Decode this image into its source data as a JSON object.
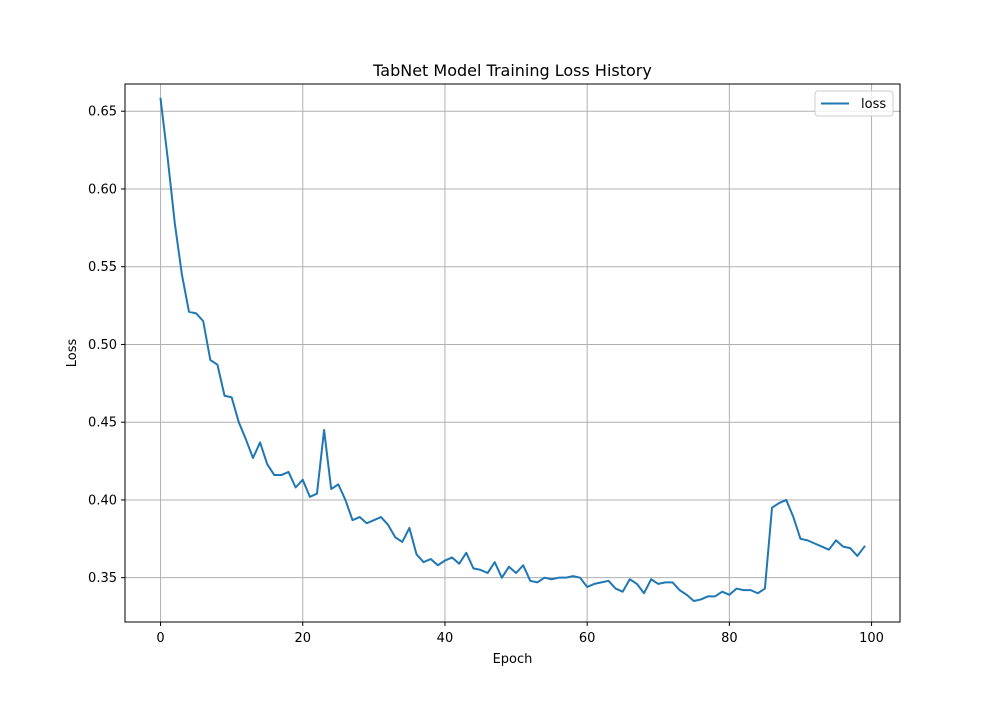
{
  "chart_data": {
    "type": "line",
    "title": "TabNet Model Training Loss History",
    "xlabel": "Epoch",
    "ylabel": "Loss",
    "xlim": [
      -5,
      104
    ],
    "ylim": [
      0.3215,
      0.6675
    ],
    "x_ticks": [
      0,
      20,
      40,
      60,
      80,
      100
    ],
    "y_ticks": [
      0.35,
      0.4,
      0.45,
      0.5,
      0.55,
      0.6,
      0.65
    ],
    "grid": true,
    "legend_position": "upper right",
    "series": [
      {
        "name": "loss",
        "color": "#1f77b4",
        "x": [
          0,
          1,
          2,
          3,
          4,
          5,
          6,
          7,
          8,
          9,
          10,
          11,
          12,
          13,
          14,
          15,
          16,
          17,
          18,
          19,
          20,
          21,
          22,
          23,
          24,
          25,
          26,
          27,
          28,
          29,
          30,
          31,
          32,
          33,
          34,
          35,
          36,
          37,
          38,
          39,
          40,
          41,
          42,
          43,
          44,
          45,
          46,
          47,
          48,
          49,
          50,
          51,
          52,
          53,
          54,
          55,
          56,
          57,
          58,
          59,
          60,
          61,
          62,
          63,
          64,
          65,
          66,
          67,
          68,
          69,
          70,
          71,
          72,
          73,
          74,
          75,
          76,
          77,
          78,
          79,
          80,
          81,
          82,
          83,
          84,
          85,
          86,
          87,
          88,
          89,
          90,
          91,
          92,
          93,
          94,
          95,
          96,
          97,
          98,
          99
        ],
        "values": [
          0.658,
          0.62,
          0.578,
          0.545,
          0.521,
          0.52,
          0.515,
          0.49,
          0.487,
          0.467,
          0.466,
          0.45,
          0.439,
          0.427,
          0.437,
          0.423,
          0.416,
          0.416,
          0.418,
          0.408,
          0.413,
          0.402,
          0.404,
          0.445,
          0.407,
          0.41,
          0.4,
          0.387,
          0.389,
          0.385,
          0.387,
          0.389,
          0.384,
          0.376,
          0.373,
          0.382,
          0.365,
          0.36,
          0.362,
          0.358,
          0.361,
          0.363,
          0.359,
          0.366,
          0.356,
          0.355,
          0.353,
          0.36,
          0.35,
          0.357,
          0.353,
          0.358,
          0.348,
          0.347,
          0.35,
          0.349,
          0.35,
          0.35,
          0.351,
          0.35,
          0.344,
          0.346,
          0.347,
          0.348,
          0.343,
          0.341,
          0.349,
          0.346,
          0.34,
          0.349,
          0.346,
          0.347,
          0.347,
          0.342,
          0.339,
          0.335,
          0.336,
          0.338,
          0.338,
          0.341,
          0.339,
          0.343,
          0.342,
          0.342,
          0.34,
          0.343,
          0.395,
          0.398,
          0.4,
          0.389,
          0.375,
          0.374,
          0.372,
          0.37,
          0.368,
          0.374,
          0.37,
          0.369,
          0.364,
          0.37
        ]
      }
    ]
  }
}
